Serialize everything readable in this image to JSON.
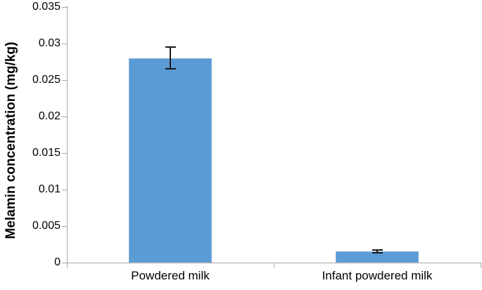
{
  "chart_data": {
    "type": "bar",
    "title": "",
    "ylabel": "Melamin concentration (mg/kg)",
    "xlabel": "",
    "categories": [
      "Powdered milk",
      "Infant powdered milk"
    ],
    "values": [
      0.028,
      0.0015
    ],
    "errors": [
      0.0015,
      0.0002
    ],
    "ylim": [
      0,
      0.035
    ],
    "yticks": [
      0,
      0.005,
      0.01,
      0.015,
      0.02,
      0.025,
      0.03,
      0.035
    ],
    "ytick_labels": [
      "0",
      "0.005",
      "0.01",
      "0.015",
      "0.02",
      "0.025",
      "0.03",
      "0.035"
    ],
    "grid": false,
    "legend": "none",
    "bar_color": "#5b9bd5",
    "bar_border_color": "#7faedd",
    "axis_color": "#a6a6a6",
    "error_bar_color": "#1a1a1a",
    "text_color": "#000000"
  }
}
